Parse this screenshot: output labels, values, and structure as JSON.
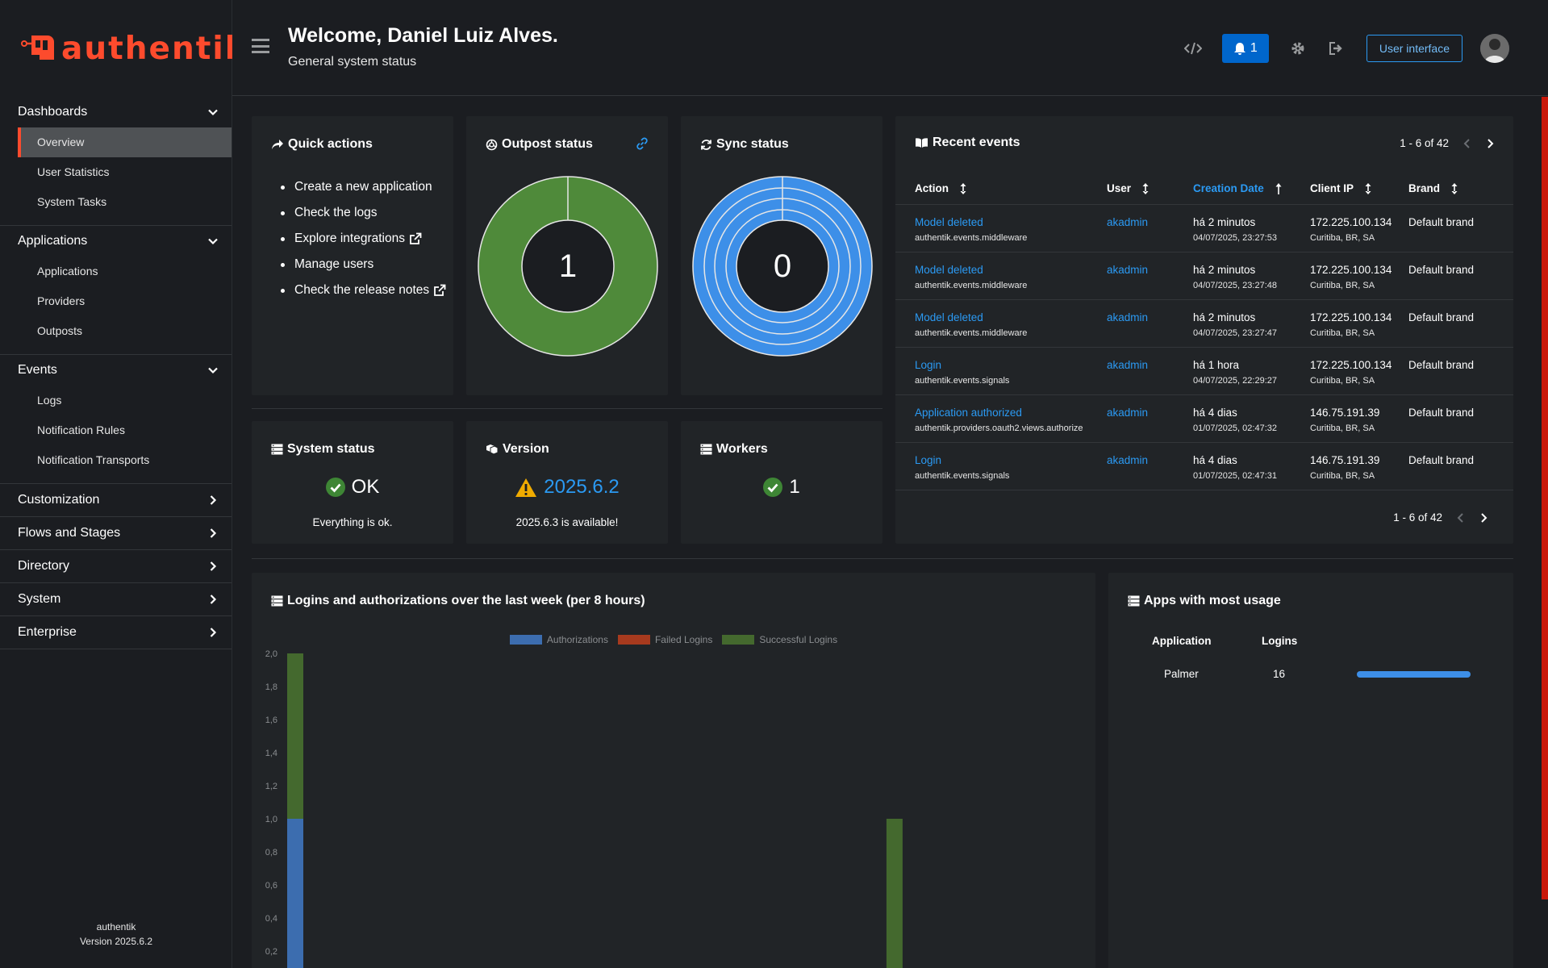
{
  "brand": {
    "name": "authentik",
    "accent": "#fd4b2d"
  },
  "sidebar": {
    "groups": [
      {
        "label": "Dashboards",
        "expanded": true,
        "items": [
          {
            "label": "Overview",
            "active": true
          },
          {
            "label": "User Statistics"
          },
          {
            "label": "System Tasks"
          }
        ]
      },
      {
        "label": "Applications",
        "expanded": true,
        "items": [
          {
            "label": "Applications"
          },
          {
            "label": "Providers"
          },
          {
            "label": "Outposts"
          }
        ]
      },
      {
        "label": "Events",
        "expanded": true,
        "items": [
          {
            "label": "Logs"
          },
          {
            "label": "Notification Rules"
          },
          {
            "label": "Notification Transports"
          }
        ]
      },
      {
        "label": "Customization",
        "expanded": false
      },
      {
        "label": "Flows and Stages",
        "expanded": false
      },
      {
        "label": "Directory",
        "expanded": false
      },
      {
        "label": "System",
        "expanded": false
      },
      {
        "label": "Enterprise",
        "expanded": false
      }
    ],
    "footer": {
      "line1": "authentik",
      "line2": "Version 2025.6.2"
    }
  },
  "header": {
    "title": "Welcome, Daniel Luiz Alves.",
    "subtitle": "General system status",
    "notification_count": "1",
    "user_interface_label": "User interface"
  },
  "quick_actions": {
    "title": "Quick actions",
    "items": [
      {
        "label": "Create a new application",
        "external": false
      },
      {
        "label": "Check the logs",
        "external": false
      },
      {
        "label": "Explore integrations",
        "external": true
      },
      {
        "label": "Manage users",
        "external": false
      },
      {
        "label": "Check the release notes",
        "external": true
      }
    ]
  },
  "outpost_status": {
    "title": "Outpost status",
    "value": "1",
    "color": "#4f8a3a"
  },
  "sync_status": {
    "title": "Sync status",
    "value": "0",
    "color": "#3d8fe8"
  },
  "system_status": {
    "title": "System status",
    "value": "OK",
    "subtext": "Everything is ok."
  },
  "version": {
    "title": "Version",
    "value": "2025.6.2",
    "subtext": "2025.6.3 is available!"
  },
  "workers": {
    "title": "Workers",
    "value": "1"
  },
  "recent_events": {
    "title": "Recent events",
    "pagination": "1 - 6 of 42",
    "columns": [
      "Action",
      "User",
      "Creation Date",
      "Client IP",
      "Brand"
    ],
    "rows": [
      {
        "action": "Model deleted",
        "action_sub": "authentik.events.middleware",
        "user": "akadmin",
        "date": "há 2 minutos",
        "date_sub": "04/07/2025, 23:27:53",
        "ip": "172.225.100.134",
        "ip_sub": "Curitiba, BR, SA",
        "brand": "Default brand"
      },
      {
        "action": "Model deleted",
        "action_sub": "authentik.events.middleware",
        "user": "akadmin",
        "date": "há 2 minutos",
        "date_sub": "04/07/2025, 23:27:48",
        "ip": "172.225.100.134",
        "ip_sub": "Curitiba, BR, SA",
        "brand": "Default brand"
      },
      {
        "action": "Model deleted",
        "action_sub": "authentik.events.middleware",
        "user": "akadmin",
        "date": "há 2 minutos",
        "date_sub": "04/07/2025, 23:27:47",
        "ip": "172.225.100.134",
        "ip_sub": "Curitiba, BR, SA",
        "brand": "Default brand"
      },
      {
        "action": "Login",
        "action_sub": "authentik.events.signals",
        "user": "akadmin",
        "date": "há 1 hora",
        "date_sub": "04/07/2025, 22:29:27",
        "ip": "172.225.100.134",
        "ip_sub": "Curitiba, BR, SA",
        "brand": "Default brand"
      },
      {
        "action": "Application authorized",
        "action_sub": "authentik.providers.oauth2.views.authorize",
        "user": "akadmin",
        "date": "há 4 dias",
        "date_sub": "01/07/2025, 02:47:32",
        "ip": "146.75.191.39",
        "ip_sub": "Curitiba, BR, SA",
        "brand": "Default brand"
      },
      {
        "action": "Login",
        "action_sub": "authentik.events.signals",
        "user": "akadmin",
        "date": "há 4 dias",
        "date_sub": "01/07/2025, 02:47:31",
        "ip": "146.75.191.39",
        "ip_sub": "Curitiba, BR, SA",
        "brand": "Default brand"
      }
    ]
  },
  "logins_chart": {
    "title": "Logins and authorizations over the last week (per 8 hours)"
  },
  "chart_data": {
    "type": "bar",
    "stacked": true,
    "series": [
      {
        "name": "Authorizations",
        "color": "#3c6daf",
        "points": [
          [
            0,
            1.0
          ]
        ]
      },
      {
        "name": "Failed Logins",
        "color": "#a73a1e",
        "points": []
      },
      {
        "name": "Successful Logins",
        "color": "#44692e",
        "points": [
          [
            0,
            1.0
          ],
          [
            17,
            1.0
          ]
        ]
      }
    ],
    "y_ticks": [
      "2,0",
      "1,8",
      "1,6",
      "1,4",
      "1,2",
      "1,0",
      "0,8",
      "0,6",
      "0,4",
      "0,2"
    ],
    "ylim": [
      0,
      2.0
    ],
    "grid": false,
    "legend": "top-center"
  },
  "apps_usage": {
    "title": "Apps with most usage",
    "columns": [
      "Application",
      "Logins"
    ],
    "rows": [
      {
        "application": "Palmer",
        "logins": "16",
        "share": 1.0
      }
    ]
  }
}
